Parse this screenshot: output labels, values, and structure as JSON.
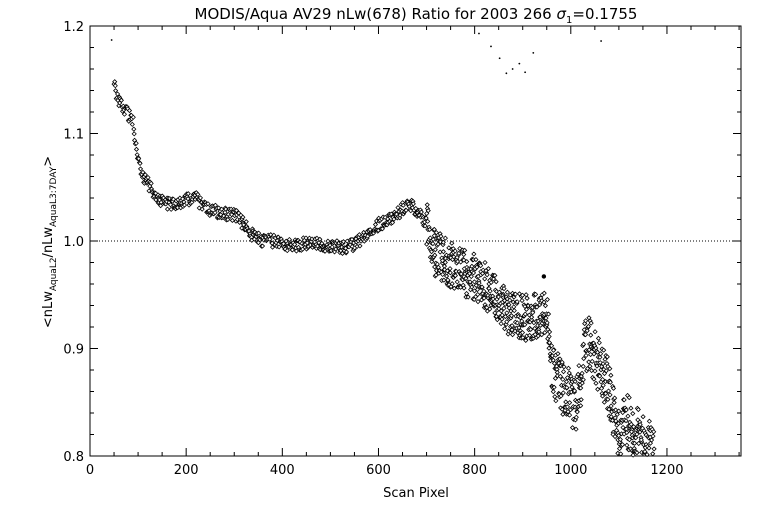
{
  "chart_data": {
    "type": "scatter",
    "title_main": "MODIS/Aqua AV29 nLw(678) Ratio for 2003 266 ",
    "title_sigma": "σ",
    "title_sigma_sub": "1",
    "title_value": "=0.1755",
    "xlabel": "Scan Pixel",
    "ylabel": {
      "prefix": "<nLw",
      "sub1": "AquaL2",
      "mid": "/nLw",
      "sub2": "AquaL3:7DAY",
      "suffix": ">"
    },
    "xlim": [
      0,
      1354
    ],
    "ylim": [
      0.8,
      1.2
    ],
    "x_ticks": [
      "0",
      "200",
      "400",
      "600",
      "800",
      "1000",
      "1200"
    ],
    "y_ticks": [
      "0.8",
      "0.9",
      "1.0",
      "1.1",
      "1.2"
    ],
    "reference_line": 1.0,
    "grid": false,
    "marker": "diamond",
    "outliers": [
      [
        45,
        1.187
      ],
      [
        809,
        1.193
      ],
      [
        834,
        1.181
      ],
      [
        852,
        1.17
      ],
      [
        866,
        1.156
      ],
      [
        879,
        1.16
      ],
      [
        893,
        1.165
      ],
      [
        905,
        1.157
      ],
      [
        922,
        1.175
      ],
      [
        1063,
        1.186
      ],
      [
        944,
        0.967
      ]
    ],
    "profile": [
      [
        50,
        1.145
      ],
      [
        60,
        1.13
      ],
      [
        70,
        1.125
      ],
      [
        80,
        1.118
      ],
      [
        90,
        1.11
      ],
      [
        100,
        1.075
      ],
      [
        110,
        1.06
      ],
      [
        120,
        1.055
      ],
      [
        130,
        1.045
      ],
      [
        140,
        1.04
      ],
      [
        160,
        1.035
      ],
      [
        180,
        1.035
      ],
      [
        200,
        1.038
      ],
      [
        220,
        1.04
      ],
      [
        240,
        1.03
      ],
      [
        260,
        1.028
      ],
      [
        280,
        1.025
      ],
      [
        300,
        1.025
      ],
      [
        320,
        1.015
      ],
      [
        340,
        1.005
      ],
      [
        360,
        1.0
      ],
      [
        380,
        1.0
      ],
      [
        400,
        0.998
      ],
      [
        420,
        0.996
      ],
      [
        440,
        0.997
      ],
      [
        460,
        0.997
      ],
      [
        480,
        0.997
      ],
      [
        500,
        0.996
      ],
      [
        520,
        0.994
      ],
      [
        540,
        0.995
      ],
      [
        560,
        1.0
      ],
      [
        580,
        1.01
      ],
      [
        600,
        1.015
      ],
      [
        620,
        1.02
      ],
      [
        640,
        1.025
      ],
      [
        660,
        1.035
      ],
      [
        675,
        1.03
      ],
      [
        690,
        1.022
      ],
      [
        705,
        1.015
      ],
      [
        712,
        0.99
      ],
      [
        730,
        0.985
      ],
      [
        750,
        0.978
      ],
      [
        770,
        0.972
      ],
      [
        790,
        0.968
      ],
      [
        810,
        0.964
      ],
      [
        830,
        0.955
      ],
      [
        850,
        0.945
      ],
      [
        870,
        0.935
      ],
      [
        890,
        0.93
      ],
      [
        910,
        0.928
      ],
      [
        930,
        0.932
      ],
      [
        950,
        0.93
      ],
      [
        960,
        0.88
      ],
      [
        980,
        0.865
      ],
      [
        1000,
        0.855
      ],
      [
        1010,
        0.845
      ],
      [
        1020,
        0.87
      ],
      [
        1030,
        0.9
      ],
      [
        1040,
        0.905
      ],
      [
        1050,
        0.895
      ],
      [
        1060,
        0.882
      ],
      [
        1070,
        0.875
      ],
      [
        1080,
        0.862
      ],
      [
        1090,
        0.835
      ],
      [
        1100,
        0.822
      ],
      [
        1120,
        0.832
      ],
      [
        1140,
        0.82
      ],
      [
        1160,
        0.812
      ],
      [
        1175,
        0.806
      ]
    ]
  }
}
